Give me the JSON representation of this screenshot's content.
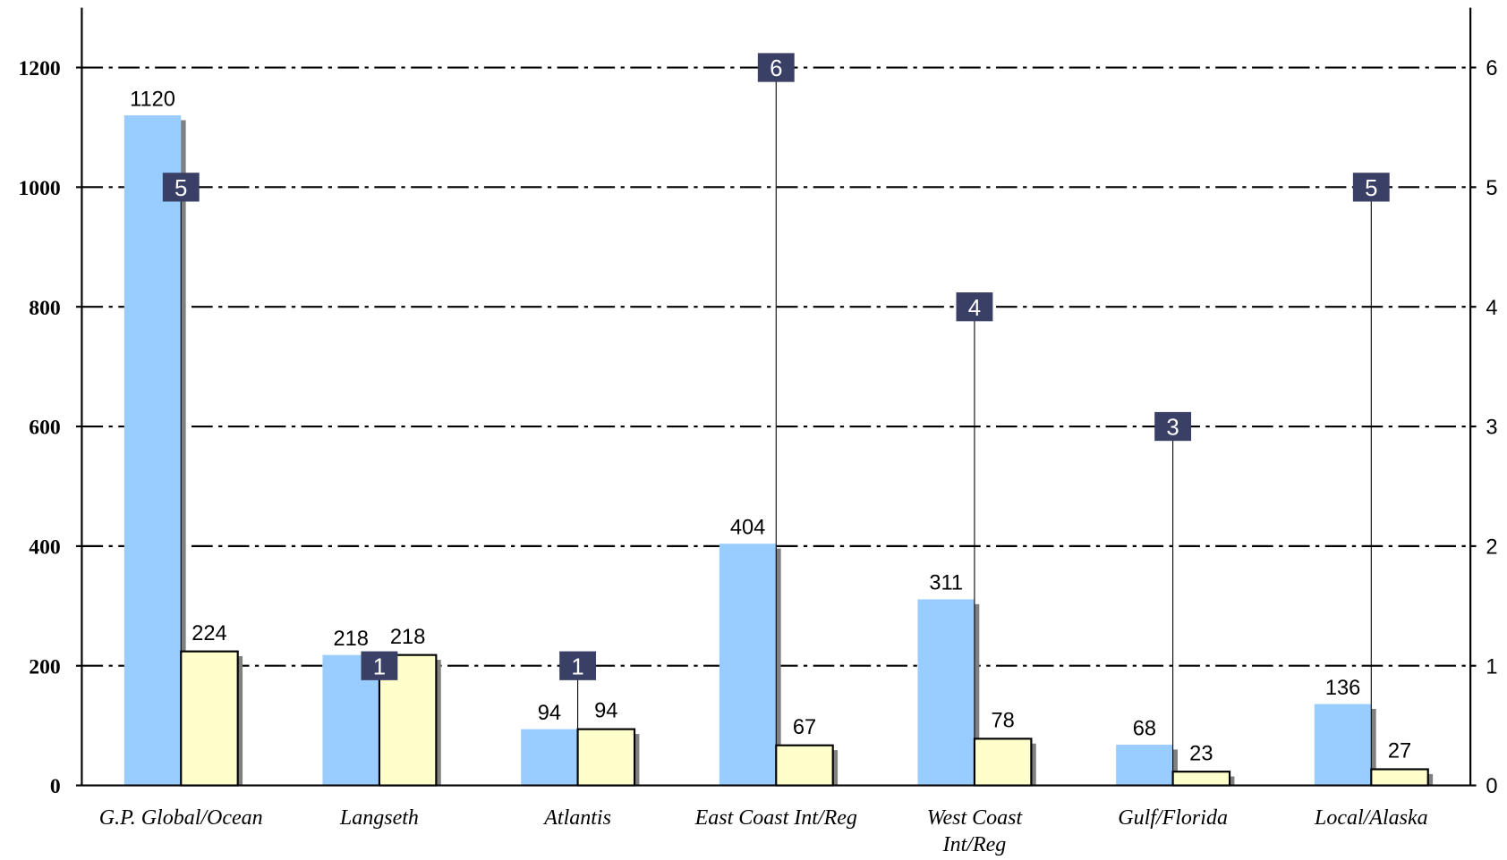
{
  "chart_data": {
    "type": "bar",
    "categories": [
      "G.P. Global/Ocean",
      "Langseth",
      "Atlantis",
      "East Coast Int/Reg",
      "West Coast Int/Reg",
      "Gulf/Florida",
      "Local/Alaska"
    ],
    "series": [
      {
        "color": "#99ccff",
        "values": [
          1120,
          218,
          94,
          404,
          311,
          68,
          136
        ]
      },
      {
        "color": "#ffffcc",
        "values": [
          224,
          218,
          94,
          67,
          78,
          23,
          27
        ]
      },
      {
        "color": "#3a3f66",
        "axis": "y2",
        "values": [
          5,
          1,
          1,
          6,
          4,
          3,
          5
        ]
      }
    ],
    "ylim": [
      0,
      1300
    ],
    "yticks": [
      0,
      200,
      400,
      600,
      800,
      1000,
      1200
    ],
    "y2lim": [
      0,
      6.5
    ],
    "y2ticks": [
      0,
      1,
      2,
      3,
      4,
      5,
      6
    ],
    "grid": true
  }
}
